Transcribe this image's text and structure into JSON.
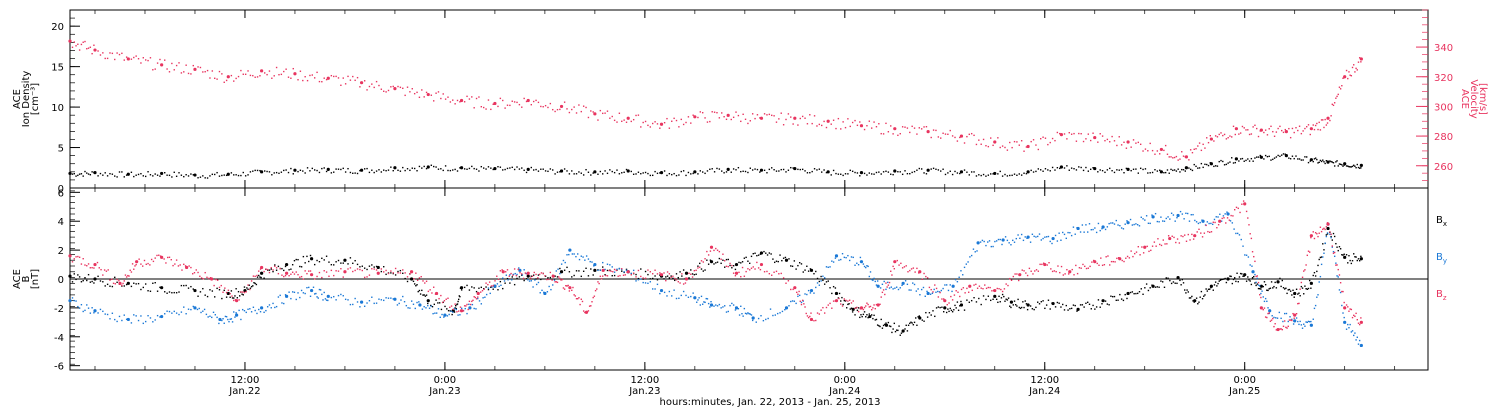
{
  "colors": {
    "density": "#000000",
    "velocity": "#e8345f",
    "bx": "#000000",
    "by": "#1a78d6",
    "bz": "#e8345f",
    "frame": "#000000"
  },
  "xlabel": "hours:minutes, Jan. 22, 2013 - Jan. 25, 2013",
  "x_ticks": [
    {
      "label": "12:00",
      "sub": "Jan.22",
      "hours": 12
    },
    {
      "label": "0:00",
      "sub": "Jan.23",
      "hours": 24
    },
    {
      "label": "12:00",
      "sub": "Jan.23",
      "hours": 36
    },
    {
      "label": "0:00",
      "sub": "Jan.24",
      "hours": 48
    },
    {
      "label": "12:00",
      "sub": "Jan.24",
      "hours": 60
    },
    {
      "label": "0:00",
      "sub": "Jan.25",
      "hours": 72
    }
  ],
  "chart_data": [
    {
      "type": "scatter",
      "panel": "top",
      "x_units": "hours since 00:00 Jan. 22, 2013",
      "xlim": [
        1.5,
        83
      ],
      "left_axis": {
        "label_lines": [
          "ACE",
          "Ion Density",
          "[cm⁻³]"
        ],
        "ylim": [
          0,
          22
        ],
        "ticks": [
          0,
          5,
          10,
          15,
          20
        ]
      },
      "right_axis": {
        "label_lines": [
          "ACE",
          "Velocity",
          "[km/s]"
        ],
        "ylim": [
          245,
          365
        ],
        "ticks": [
          260,
          280,
          300,
          320,
          340
        ]
      },
      "series": [
        {
          "key": "density",
          "axis": "left",
          "points": [
            [
              1.5,
              1.8
            ],
            [
              3,
              1.9
            ],
            [
              5,
              1.7
            ],
            [
              7,
              1.8
            ],
            [
              9,
              1.6
            ],
            [
              11,
              1.7
            ],
            [
              13,
              2.0
            ],
            [
              15,
              2.2
            ],
            [
              17,
              2.3
            ],
            [
              19,
              2.2
            ],
            [
              21,
              2.5
            ],
            [
              23,
              2.6
            ],
            [
              25,
              2.5
            ],
            [
              27,
              2.4
            ],
            [
              29,
              2.3
            ],
            [
              31,
              2.1
            ],
            [
              33,
              2.0
            ],
            [
              35,
              2.1
            ],
            [
              37,
              1.9
            ],
            [
              39,
              2.0
            ],
            [
              41,
              2.3
            ],
            [
              43,
              2.2
            ],
            [
              45,
              2.4
            ],
            [
              47,
              2.0
            ],
            [
              49,
              1.9
            ],
            [
              51,
              2.1
            ],
            [
              53,
              2.2
            ],
            [
              55,
              2.0
            ],
            [
              57,
              1.8
            ],
            [
              59,
              2.0
            ],
            [
              61,
              2.6
            ],
            [
              63,
              2.4
            ],
            [
              65,
              2.3
            ],
            [
              67,
              2.0
            ],
            [
              68.5,
              2.5
            ],
            [
              70,
              3.0
            ],
            [
              71.5,
              3.6
            ],
            [
              73,
              3.8
            ],
            [
              74.5,
              4.0
            ],
            [
              76,
              3.5
            ],
            [
              77,
              3.2
            ],
            [
              78,
              3.0
            ],
            [
              79,
              2.8
            ]
          ]
        },
        {
          "key": "velocity",
          "axis": "right",
          "points": [
            [
              1.5,
              344
            ],
            [
              3,
              338
            ],
            [
              5,
              332
            ],
            [
              7,
              328
            ],
            [
              9,
              325
            ],
            [
              11,
              320
            ],
            [
              13,
              324
            ],
            [
              15,
              322
            ],
            [
              17,
              319
            ],
            [
              19,
              316
            ],
            [
              21,
              312
            ],
            [
              23,
              308
            ],
            [
              25,
              304
            ],
            [
              27,
              302
            ],
            [
              29,
              304
            ],
            [
              31,
              300
            ],
            [
              33,
              295
            ],
            [
              35,
              292
            ],
            [
              37,
              288
            ],
            [
              39,
              293
            ],
            [
              41,
              294
            ],
            [
              43,
              292
            ],
            [
              45,
              292
            ],
            [
              47,
              290
            ],
            [
              49,
              287
            ],
            [
              51,
              285
            ],
            [
              53,
              283
            ],
            [
              55,
              280
            ],
            [
              57,
              276
            ],
            [
              59,
              273
            ],
            [
              61,
              281
            ],
            [
              63,
              279
            ],
            [
              65,
              276
            ],
            [
              67,
              271
            ],
            [
              68.5,
              266
            ],
            [
              70,
              278
            ],
            [
              71.5,
              285
            ],
            [
              73,
              284
            ],
            [
              74.5,
              283
            ],
            [
              76,
              285
            ],
            [
              77,
              292
            ],
            [
              78,
              320
            ],
            [
              79,
              332
            ]
          ]
        }
      ]
    },
    {
      "type": "scatter",
      "panel": "bottom",
      "x_units": "hours since 00:00 Jan. 22, 2013",
      "xlim": [
        1.5,
        83
      ],
      "left_axis": {
        "label_lines": [
          "ACE",
          "B",
          "[nT]"
        ],
        "ylim": [
          -6.3,
          6.3
        ],
        "ticks": [
          -6,
          -4,
          -2,
          0,
          2,
          4,
          6
        ]
      },
      "zero_line": true,
      "legend": [
        {
          "text": "B",
          "sub": "x",
          "key": "bx"
        },
        {
          "text": "B",
          "sub": "y",
          "key": "by"
        },
        {
          "text": "B",
          "sub": "z",
          "key": "bz"
        }
      ],
      "series": [
        {
          "key": "bx",
          "points": [
            [
              1.5,
              0.2
            ],
            [
              3,
              0.0
            ],
            [
              5,
              -0.3
            ],
            [
              7,
              -0.6
            ],
            [
              9,
              -0.8
            ],
            [
              11,
              -1.0
            ],
            [
              12,
              -0.8
            ],
            [
              13,
              0.4
            ],
            [
              14.5,
              1.0
            ],
            [
              16,
              1.4
            ],
            [
              18,
              1.3
            ],
            [
              20,
              0.8
            ],
            [
              22,
              0.0
            ],
            [
              23,
              -1.5
            ],
            [
              24.5,
              -2.2
            ],
            [
              25,
              -0.6
            ],
            [
              27,
              -0.5
            ],
            [
              29,
              0.2
            ],
            [
              31,
              0.5
            ],
            [
              33,
              0.6
            ],
            [
              35,
              0.5
            ],
            [
              37,
              0.2
            ],
            [
              38.5,
              0.4
            ],
            [
              40,
              1.2
            ],
            [
              41.5,
              1.0
            ],
            [
              43,
              1.8
            ],
            [
              44.5,
              1.3
            ],
            [
              46,
              0.6
            ],
            [
              47.5,
              -1.0
            ],
            [
              48.5,
              -2.1
            ],
            [
              49.5,
              -2.6
            ],
            [
              50.5,
              -3.2
            ],
            [
              51.5,
              -3.6
            ],
            [
              52.5,
              -2.7
            ],
            [
              54,
              -2.0
            ],
            [
              55,
              -1.8
            ],
            [
              57,
              -1.2
            ],
            [
              58,
              -1.6
            ],
            [
              59,
              -1.8
            ],
            [
              60.5,
              -1.7
            ],
            [
              62,
              -2.1
            ],
            [
              63.5,
              -1.5
            ],
            [
              65,
              -1.0
            ],
            [
              66.5,
              -0.5
            ],
            [
              68,
              0.1
            ],
            [
              69,
              -1.5
            ],
            [
              70,
              -0.5
            ],
            [
              71,
              0.0
            ],
            [
              72,
              0.3
            ],
            [
              73,
              -0.5
            ],
            [
              74,
              -0.2
            ],
            [
              75,
              -1.0
            ],
            [
              76,
              -0.3
            ],
            [
              77,
              3.5
            ],
            [
              78,
              1.5
            ],
            [
              79,
              1.4
            ]
          ]
        },
        {
          "key": "by",
          "points": [
            [
              1.5,
              -1.5
            ],
            [
              3,
              -2.2
            ],
            [
              5,
              -2.8
            ],
            [
              7,
              -2.6
            ],
            [
              9,
              -2.0
            ],
            [
              10.5,
              -2.8
            ],
            [
              11.5,
              -2.5
            ],
            [
              13,
              -2.0
            ],
            [
              14.5,
              -1.2
            ],
            [
              16,
              -0.8
            ],
            [
              17,
              -1.2
            ],
            [
              19,
              -1.6
            ],
            [
              21,
              -1.4
            ],
            [
              22.5,
              -1.8
            ],
            [
              24,
              -2.5
            ],
            [
              25.5,
              -2.0
            ],
            [
              27,
              -0.5
            ],
            [
              28.5,
              0.6
            ],
            [
              30,
              -1.0
            ],
            [
              31.5,
              2.0
            ],
            [
              33,
              1.0
            ],
            [
              35,
              0.5
            ],
            [
              37,
              -0.8
            ],
            [
              39,
              -1.3
            ],
            [
              40,
              -1.8
            ],
            [
              41.5,
              -2.0
            ],
            [
              42.5,
              -2.7
            ],
            [
              44.5,
              -2.0
            ],
            [
              46,
              -0.8
            ],
            [
              47.5,
              1.6
            ],
            [
              49,
              1.2
            ],
            [
              50,
              -0.5
            ],
            [
              51.5,
              -0.3
            ],
            [
              53,
              -1.0
            ],
            [
              54.5,
              -0.5
            ],
            [
              56,
              2.5
            ],
            [
              57.5,
              2.7
            ],
            [
              59,
              2.9
            ],
            [
              60.5,
              2.8
            ],
            [
              62,
              3.5
            ],
            [
              63.5,
              3.6
            ],
            [
              65,
              3.9
            ],
            [
              66.5,
              4.3
            ],
            [
              68,
              4.4
            ],
            [
              69.5,
              4.0
            ],
            [
              71,
              4.5
            ],
            [
              72.5,
              0.5
            ],
            [
              73.5,
              -2.2
            ],
            [
              75,
              -2.9
            ],
            [
              76,
              -3.2
            ],
            [
              77,
              3.8
            ],
            [
              78,
              -3.0
            ],
            [
              79,
              -4.6
            ]
          ]
        },
        {
          "key": "bz",
          "points": [
            [
              1.5,
              1.6
            ],
            [
              3,
              1.0
            ],
            [
              4.5,
              -0.3
            ],
            [
              5.5,
              1.2
            ],
            [
              7,
              1.5
            ],
            [
              8.5,
              0.8
            ],
            [
              10,
              0.0
            ],
            [
              11.5,
              -1.5
            ],
            [
              13,
              0.8
            ],
            [
              14.5,
              0.4
            ],
            [
              16,
              0.3
            ],
            [
              18,
              0.5
            ],
            [
              20,
              0.4
            ],
            [
              22,
              0.5
            ],
            [
              23.5,
              -1.0
            ],
            [
              25,
              -2.2
            ],
            [
              26,
              -1.0
            ],
            [
              27.5,
              0.5
            ],
            [
              29,
              0.4
            ],
            [
              30.5,
              0.2
            ],
            [
              31.5,
              -0.6
            ],
            [
              32.5,
              -2.3
            ],
            [
              33.5,
              0.6
            ],
            [
              35,
              0.5
            ],
            [
              37,
              0.3
            ],
            [
              38.5,
              0.0
            ],
            [
              40,
              2.2
            ],
            [
              41.5,
              0.4
            ],
            [
              43,
              1.0
            ],
            [
              45,
              -0.6
            ],
            [
              46,
              -2.8
            ],
            [
              47.5,
              -1.5
            ],
            [
              49,
              -2.0
            ],
            [
              50,
              -1.8
            ],
            [
              51,
              1.2
            ],
            [
              52.5,
              0.5
            ],
            [
              54,
              -1.5
            ],
            [
              55.5,
              -0.5
            ],
            [
              57,
              -0.8
            ],
            [
              58.5,
              0.3
            ],
            [
              60,
              1.0
            ],
            [
              61.5,
              0.5
            ],
            [
              63,
              1.2
            ],
            [
              64.5,
              1.4
            ],
            [
              66,
              2.2
            ],
            [
              67.5,
              2.8
            ],
            [
              69,
              3.0
            ],
            [
              70.5,
              4.0
            ],
            [
              72,
              5.2
            ],
            [
              73,
              -2.0
            ],
            [
              74,
              -3.5
            ],
            [
              75,
              -2.5
            ],
            [
              76,
              3.0
            ],
            [
              77,
              3.8
            ],
            [
              78,
              -2.0
            ],
            [
              79,
              -3.0
            ]
          ]
        }
      ]
    }
  ]
}
